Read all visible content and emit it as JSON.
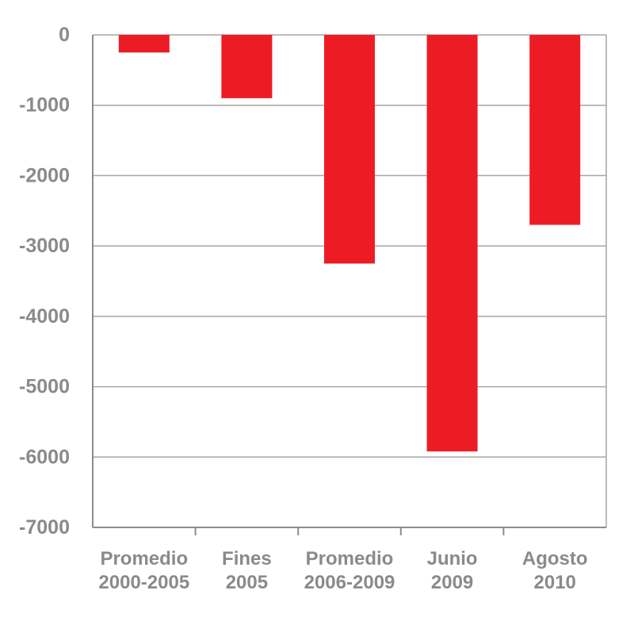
{
  "chart_data": {
    "type": "bar",
    "categories": [
      [
        "Promedio",
        "2000-2005"
      ],
      [
        "Fines",
        "2005"
      ],
      [
        "Promedio",
        "2006-2009"
      ],
      [
        "Junio",
        "2009"
      ],
      [
        "Agosto",
        "2010"
      ]
    ],
    "values": [
      -250,
      -900,
      -3250,
      -5920,
      -2700
    ],
    "ylim": [
      -7000,
      0
    ],
    "yticks": [
      0,
      -1000,
      -2000,
      -3000,
      -4000,
      -5000,
      -6000,
      -7000
    ],
    "ytick_labels": [
      "0",
      "-1000",
      "-2000",
      "-3000",
      "-4000",
      "-5000",
      "-6000",
      "-7000"
    ],
    "grid": true,
    "title": "",
    "xlabel": "",
    "ylabel": ""
  },
  "colors": {
    "bar": "#ed1c24",
    "grid": "#a6a6a6",
    "axis": "#8c8c8c",
    "text": "#8a8a8a"
  }
}
